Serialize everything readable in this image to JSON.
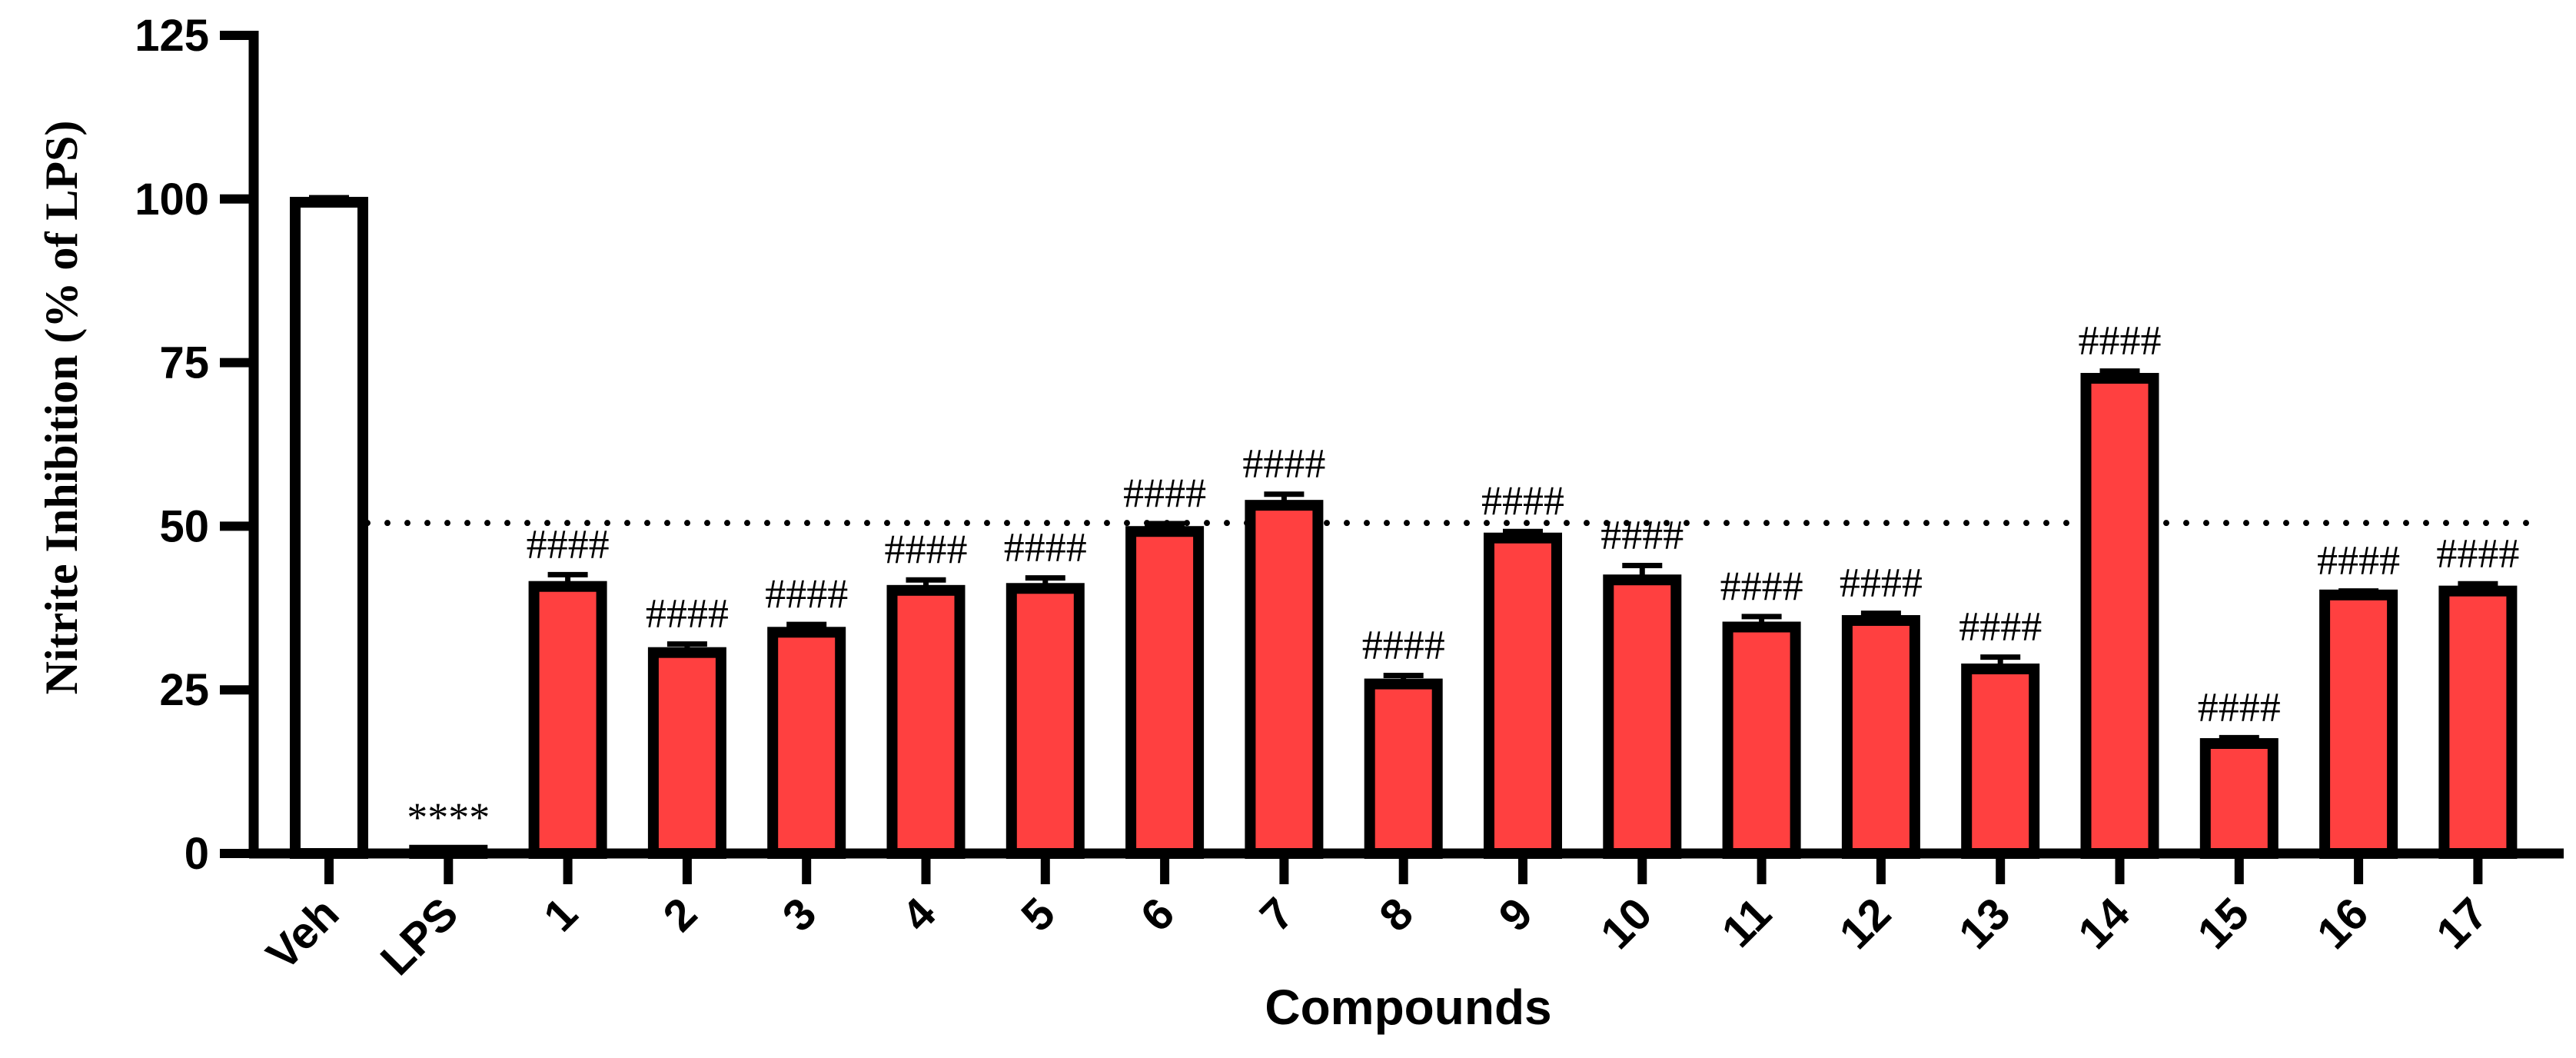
{
  "chart_data": {
    "type": "bar",
    "title": "",
    "xlabel": "Compounds",
    "ylabel": "Nitrite Inhibition (% of LPS)",
    "ylim": [
      0,
      125
    ],
    "yticks": [
      0,
      25,
      50,
      75,
      100,
      125
    ],
    "grid": false,
    "legend": "none",
    "categories": [
      "Veh",
      "LPS",
      "1",
      "2",
      "3",
      "4",
      "5",
      "6",
      "7",
      "8",
      "9",
      "10",
      "11",
      "12",
      "13",
      "14",
      "15",
      "16",
      "17"
    ],
    "values": [
      99.5,
      0.5,
      40.8,
      30.7,
      33.8,
      40.2,
      40.5,
      49.2,
      53.2,
      25.9,
      48.2,
      41.8,
      34.6,
      35.6,
      28.2,
      72.6,
      16.8,
      39.5,
      40.1
    ],
    "errors": [
      0.7,
      0.3,
      1.8,
      1.3,
      1.2,
      1.6,
      1.6,
      1.2,
      1.7,
      1.3,
      1.0,
      2.2,
      1.6,
      1.1,
      1.8,
      1.1,
      0.9,
      0.6,
      1.1
    ],
    "annotations": [
      "",
      "****",
      "####",
      "####",
      "####",
      "####",
      "####",
      "####",
      "####",
      "####",
      "####",
      "####",
      "####",
      "####",
      "####",
      "####",
      "####",
      "####",
      "####"
    ],
    "reference_line": {
      "value": 50.5,
      "style": "dotted"
    },
    "colors": {
      "veh": "#ffffff",
      "lps": "#ffffff",
      "compound": "#ff4040",
      "outline": "#000000"
    }
  }
}
